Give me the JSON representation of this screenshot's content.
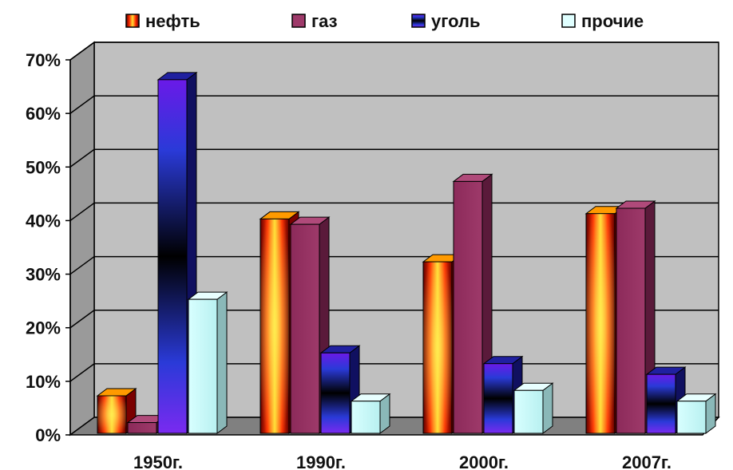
{
  "chart_data": {
    "type": "bar",
    "categories": [
      "1950г.",
      "1990г.",
      "2000г.",
      "2007г."
    ],
    "series": [
      {
        "name": "нефть",
        "values": [
          7,
          40,
          32,
          41
        ]
      },
      {
        "name": "газ",
        "values": [
          2,
          39,
          47,
          42
        ]
      },
      {
        "name": "уголь",
        "values": [
          66,
          15,
          13,
          11
        ]
      },
      {
        "name": "прочие",
        "values": [
          25,
          6,
          8,
          6
        ]
      }
    ],
    "ylim": [
      0,
      70
    ],
    "yticks": [
      "0%",
      "10%",
      "20%",
      "30%",
      "40%",
      "50%",
      "60%",
      "70%"
    ],
    "grid": true,
    "legend_position": "top",
    "style": "3d-bar"
  },
  "colors": {
    "wall": "#c0c0c0",
    "floor": "#808080",
    "grid": "#000000"
  }
}
